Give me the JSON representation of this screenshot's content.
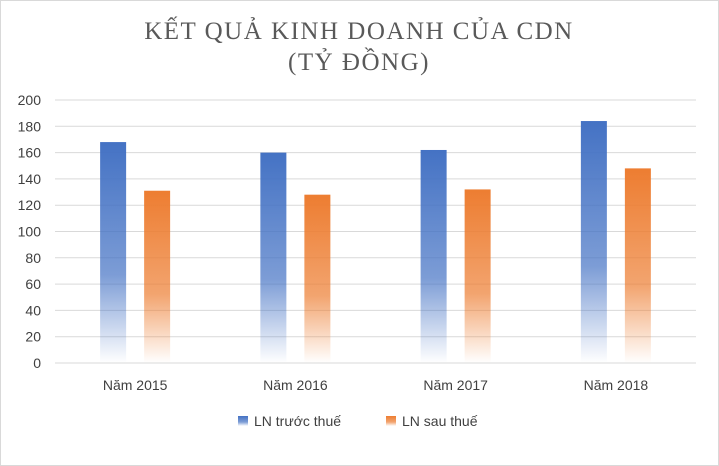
{
  "chart_data": {
    "type": "bar",
    "title_lines": [
      "KẾT QUẢ KINH DOANH CỦA CDN",
      "(TỶ ĐỒNG)"
    ],
    "categories": [
      "Năm 2015",
      "Năm 2016",
      "Năm 2017",
      "Năm 2018"
    ],
    "series": [
      {
        "name": "LN trước thuế",
        "values": [
          168,
          160,
          162,
          184
        ],
        "color": "#4472c4"
      },
      {
        "name": "LN sau thuế",
        "values": [
          131,
          128,
          132,
          148
        ],
        "color": "#ed7d31"
      }
    ],
    "ylim": [
      0,
      200
    ],
    "yticks": [
      "0",
      "20",
      "40",
      "60",
      "80",
      "100",
      "120",
      "140",
      "160",
      "180",
      "200"
    ],
    "grid": true,
    "legend_position": "bottom",
    "bar_fill": "gradient fading to white at baseline"
  }
}
